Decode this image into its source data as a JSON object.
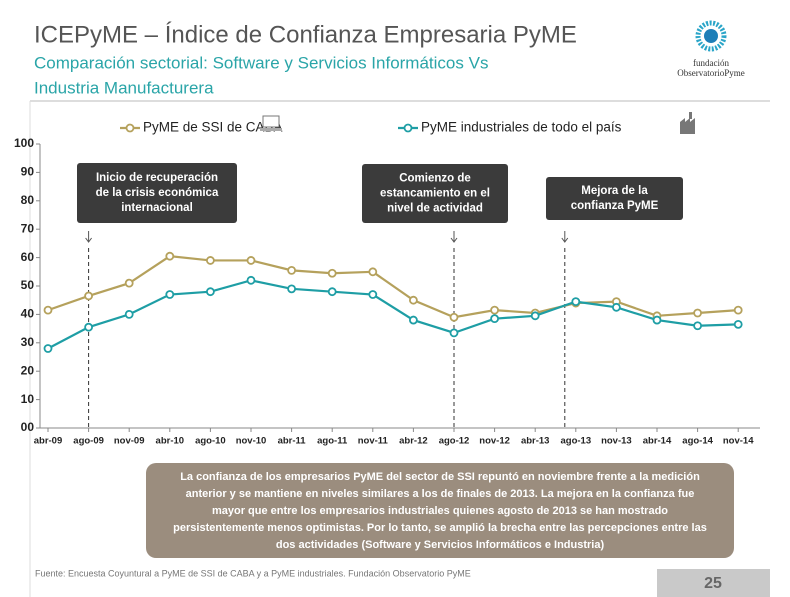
{
  "title": "ICEPyME – Índice de Confianza Empresaria PyME",
  "subtitle": [
    "Comparación sectorial: Software y Servicios Informáticos Vs",
    "Industria Manufacturera"
  ],
  "logo": [
    "fundación",
    "ObservatorioPyme"
  ],
  "chart_data": {
    "type": "line",
    "categories": [
      "abr-09",
      "ago-09",
      "nov-09",
      "abr-10",
      "ago-10",
      "nov-10",
      "abr-11",
      "ago-11",
      "nov-11",
      "abr-12",
      "ago-12",
      "nov-12",
      "abr-13",
      "ago-13",
      "nov-13",
      "abr-14",
      "ago-14",
      "nov-14"
    ],
    "series": [
      {
        "name": "PyME de SSI de CABA",
        "color": "#b5a15c",
        "values": [
          41.5,
          46.5,
          51,
          60.5,
          59,
          59,
          55.5,
          54.5,
          55,
          45,
          39,
          41.5,
          40.5,
          44,
          44.5,
          39.5,
          40.5,
          41.5
        ]
      },
      {
        "name": "PyME industriales de todo el país",
        "color": "#1e9ea5",
        "values": [
          28,
          35.5,
          40,
          47,
          48,
          52,
          49,
          48,
          47,
          38,
          33.5,
          38.5,
          39.5,
          44.5,
          42.5,
          38,
          36,
          36.5
        ]
      }
    ],
    "ylim": [
      0,
      100
    ],
    "yticks": [
      {
        "value": 0,
        "label": "00"
      },
      10,
      20,
      30,
      40,
      50,
      60,
      70,
      80,
      90,
      100
    ],
    "annotations": [
      {
        "lines": [
          "Inicio de recuperación",
          "de la crisis económica",
          "internacional"
        ],
        "category": "ago-09"
      },
      {
        "lines": [
          "Comienzo de",
          "estancamiento en el",
          "nivel de actividad"
        ],
        "category": "ago-12"
      },
      {
        "lines": [
          "Mejora de la",
          "confianza PyME"
        ],
        "category": "ago-13"
      }
    ]
  },
  "note": [
    "La confianza de los empresarios PyME del sector de SSI repuntó en noviembre frente a la medición",
    "anterior y se mantiene en niveles similares a los de finales de 2013. La mejora en la confianza fue",
    "mayor que entre los empresarios industriales quienes agosto de 2013 se han mostrado",
    "persistentemente menos optimistas. Por lo tanto, se amplió la brecha entre las percepciones entre las",
    "dos actividades (Software y Servicios Informáticos e Industria)"
  ],
  "source": "Fuente: Encuesta Coyuntural a PyME de SSI de CABA y a PyME industriales. Fundación Observatorio PyME",
  "page_number": "25"
}
